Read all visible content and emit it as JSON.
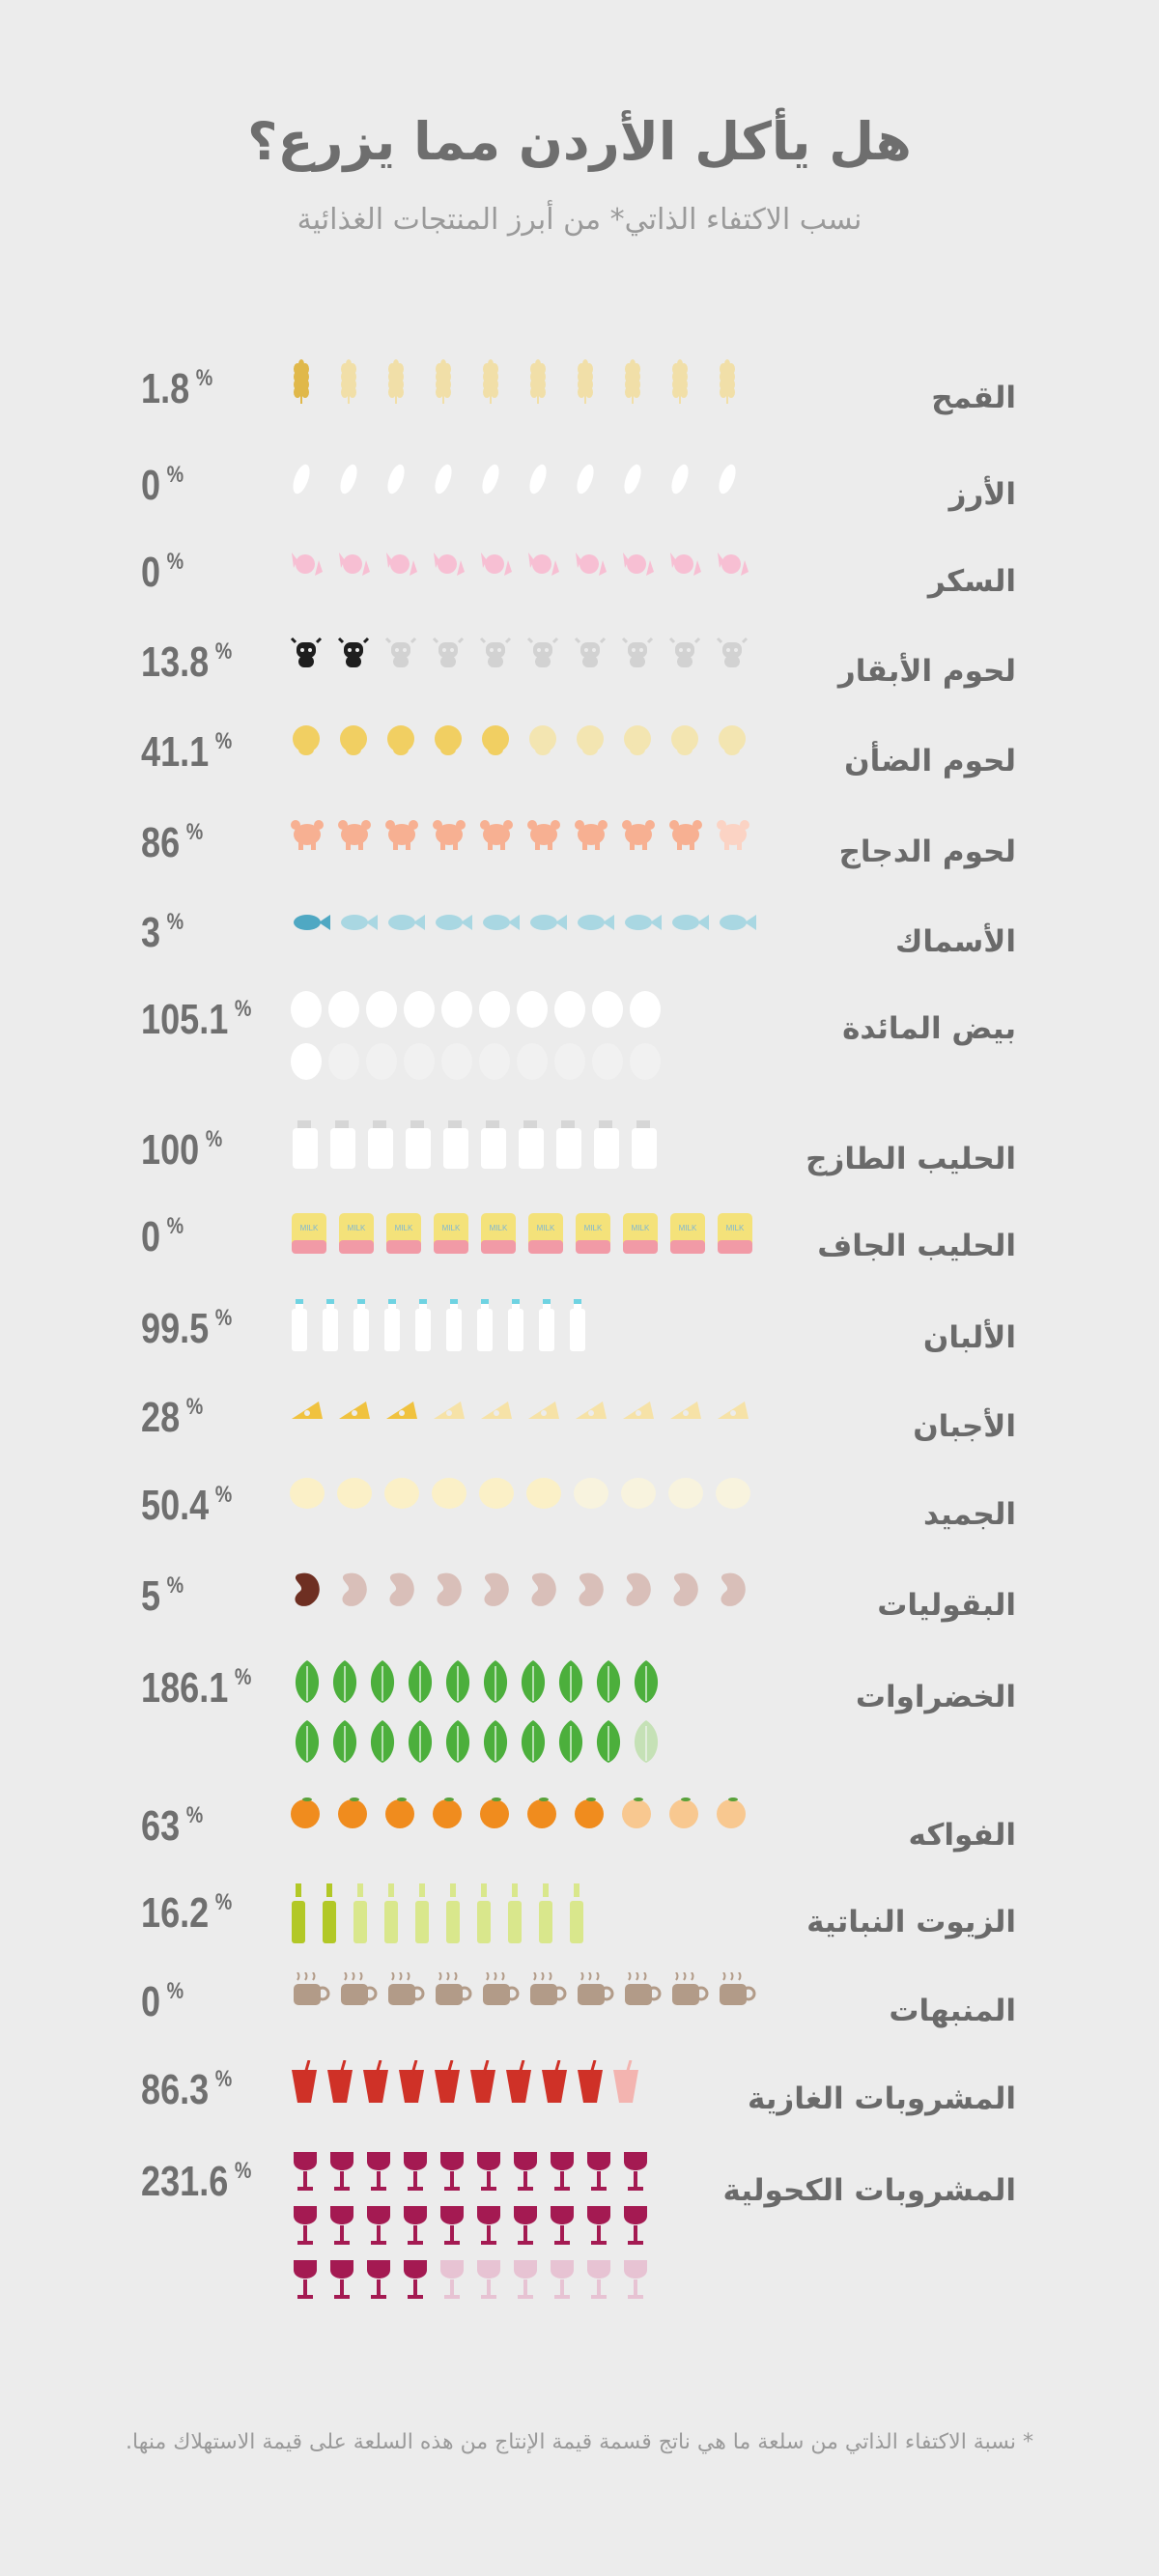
{
  "header": {
    "title": "هل يأكل الأردن مما يزرع؟",
    "subtitle": "نسب الاكتفاء الذاتي* من أبرز المنتجات الغذائية"
  },
  "items": [
    {
      "label": "القمح",
      "value": "1.8",
      "pct": "%",
      "ratio": 0.018,
      "icon": "wheat-icon",
      "color": "#f1dfa8",
      "dark": "#e0b84a",
      "rows": 1
    },
    {
      "label": "الأرز",
      "value": "0",
      "pct": "%",
      "ratio": 0,
      "icon": "rice-icon",
      "color": "#ffffff",
      "dark": "#ffffff",
      "rows": 1
    },
    {
      "label": "السكر",
      "value": "0",
      "pct": "%",
      "ratio": 0,
      "icon": "candy-icon",
      "color": "#f7bfd3",
      "dark": "#f7bfd3",
      "rows": 1
    },
    {
      "label": "لحوم الأبقار",
      "value": "13.8",
      "pct": "%",
      "ratio": 0.138,
      "icon": "cow-icon",
      "color": "#d2d2d2",
      "dark": "#1e1e1e",
      "rows": 1
    },
    {
      "label": "لحوم الضأن",
      "value": "41.1",
      "pct": "%",
      "ratio": 0.411,
      "icon": "sheep-icon",
      "color": "#f3e5b1",
      "dark": "#f1cf62",
      "rows": 1
    },
    {
      "label": "لحوم الدجاج",
      "value": "86",
      "pct": "%",
      "ratio": 0.86,
      "icon": "chicken-icon",
      "color": "#fbd3c4",
      "dark": "#f7b092",
      "rows": 1
    },
    {
      "label": "الأسماك",
      "value": "3",
      "pct": "%",
      "ratio": 0.03,
      "icon": "fish-icon",
      "color": "#a9d7e2",
      "dark": "#4fa8c3",
      "rows": 1
    },
    {
      "label": "بيض المائدة",
      "value": "105.1",
      "pct": "%",
      "ratio": 1.051,
      "icon": "egg-icon",
      "color": "#f6f6f6",
      "dark": "#ffffff",
      "rows": 2
    },
    {
      "label": "الحليب الطازج",
      "value": "100",
      "pct": "%",
      "ratio": 1.0,
      "icon": "milk-jar-icon",
      "color": "#ffffff",
      "dark": "#ffffff",
      "rows": 1
    },
    {
      "label": "الحليب الجاف",
      "value": "0",
      "pct": "%",
      "ratio": 0,
      "icon": "powder-milk-icon",
      "color": "#f4e27a",
      "dark": "#f4e27a",
      "rows": 1,
      "tag": "MILK"
    },
    {
      "label": "الألبان",
      "value": "99.5",
      "pct": "%",
      "ratio": 0.995,
      "icon": "dairy-bottle-icon",
      "color": "#ffffff",
      "dark": "#ffffff",
      "rows": 1
    },
    {
      "label": "الأجبان",
      "value": "28",
      "pct": "%",
      "ratio": 0.28,
      "icon": "cheese-icon",
      "color": "#f6e2a7",
      "dark": "#f0c23f",
      "rows": 1
    },
    {
      "label": "الجميد",
      "value": "50.4",
      "pct": "%",
      "ratio": 0.504,
      "icon": "jameed-icon",
      "color": "#f8f3de",
      "dark": "#fbf0c7",
      "rows": 1
    },
    {
      "label": "البقوليات",
      "value": "5",
      "pct": "%",
      "ratio": 0.05,
      "icon": "bean-icon",
      "color": "#d9bfb9",
      "dark": "#6e2f22",
      "rows": 1
    },
    {
      "label": "الخضراوات",
      "value": "186.1",
      "pct": "%",
      "ratio": 1.861,
      "icon": "leaf-icon",
      "color": "#a6d98b",
      "dark": "#4caf3c",
      "rows": 2
    },
    {
      "label": "الفواكه",
      "value": "63",
      "pct": "%",
      "ratio": 0.63,
      "icon": "orange-icon",
      "color": "#f8c890",
      "dark": "#f08c1e",
      "rows": 1
    },
    {
      "label": "الزيوت النباتية",
      "value": "16.2",
      "pct": "%",
      "ratio": 0.162,
      "icon": "oil-bottle-icon",
      "color": "#d9e78c",
      "dark": "#b2c826",
      "rows": 1
    },
    {
      "label": "المنبهات",
      "value": "0",
      "pct": "%",
      "ratio": 0,
      "icon": "coffee-cup-icon",
      "color": "#b29b88",
      "dark": "#b29b88",
      "rows": 1
    },
    {
      "label": "المشروبات الغازية",
      "value": "86.3",
      "pct": "%",
      "ratio": 0.863,
      "icon": "soda-cup-icon",
      "color": "#f3b4b0",
      "dark": "#cf3127",
      "rows": 1
    },
    {
      "label": "المشروبات الكحولية",
      "value": "231.6",
      "pct": "%",
      "ratio": 2.316,
      "icon": "wine-glass-icon",
      "color": "#e3a2c0",
      "dark": "#a41a52",
      "rows": 3
    }
  ],
  "footnote": "* نسبة الاكتفاء الذاتي من سلعة ما هي ناتج قسمة قيمة الإنتاج من هذه السلعة على قيمة الاستهلاك منها."
}
